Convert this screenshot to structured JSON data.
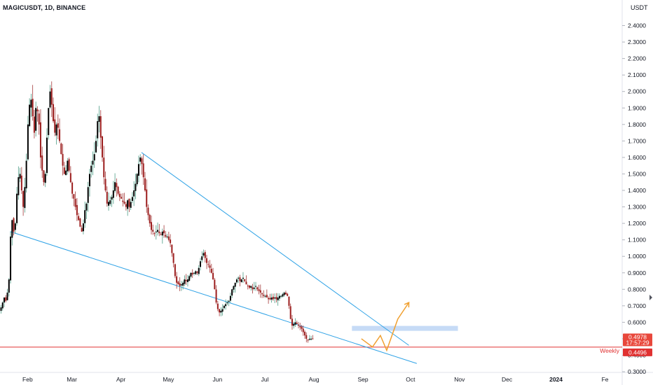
{
  "header": {
    "symbol_title": "MAGICUSDT, 1D, BINANCE",
    "currency": "USDT"
  },
  "colors": {
    "up": "#000000",
    "down": "#9c1e1e",
    "wick_up": "#4e9c86",
    "wick_down": "#a33a3a",
    "trendline": "#2ea2e6",
    "support_line": "#e03131",
    "zone": "#bcd5f5",
    "projection": "#f0a030"
  },
  "chart_data": {
    "type": "candlestick",
    "title": "MAGICUSDT, 1D, BINANCE",
    "y_axis_unit": "USDT",
    "y_ticks": [
      "2.4000",
      "2.3000",
      "2.2000",
      "2.1000",
      "2.0000",
      "1.9000",
      "1.8000",
      "1.7000",
      "1.6000",
      "1.5000",
      "1.4000",
      "1.3000",
      "1.2000",
      "1.1000",
      "1.0000",
      "0.9000",
      "0.8000",
      "0.7000",
      "0.6000",
      "0.5000",
      "0.4000",
      "0.3000"
    ],
    "x_ticks": [
      "Feb",
      "Mar",
      "Apr",
      "May",
      "Jun",
      "Jul",
      "Aug",
      "Sep",
      "Oct",
      "Nov",
      "Dec",
      "2024",
      "Fe"
    ],
    "x_start": "2023-01-15",
    "current_price": "0.4978",
    "countdown": "17:57:29",
    "weekly_level_label": "Weekly",
    "weekly_level_price": "0.4496",
    "support_zone": [
      0.548,
      0.578
    ],
    "wedge_upper": [
      [
        "2023-04-14",
        1.63
      ],
      [
        "2023-09-30",
        0.46
      ]
    ],
    "wedge_lower": [
      [
        "2023-01-21",
        1.15
      ],
      [
        "2023-10-05",
        0.35
      ]
    ],
    "projection_path": [
      [
        "2023-08-31",
        0.5
      ],
      [
        "2023-09-07",
        0.45
      ],
      [
        "2023-09-12",
        0.52
      ],
      [
        "2023-09-16",
        0.43
      ],
      [
        "2023-09-23",
        0.62
      ],
      [
        "2023-09-30",
        0.72
      ]
    ],
    "close_series": [
      0.69,
      0.72,
      0.75,
      0.73,
      0.78,
      0.86,
      1.12,
      1.22,
      1.15,
      1.2,
      1.38,
      1.48,
      1.5,
      1.4,
      1.3,
      1.42,
      1.58,
      1.8,
      1.92,
      1.95,
      1.85,
      1.75,
      1.9,
      1.88,
      1.8,
      1.6,
      1.52,
      1.45,
      1.5,
      1.72,
      1.9,
      2.0,
      1.92,
      1.82,
      1.75,
      1.8,
      1.78,
      1.7,
      1.62,
      1.55,
      1.5,
      1.52,
      1.58,
      1.52,
      1.45,
      1.38,
      1.35,
      1.3,
      1.25,
      1.22,
      1.18,
      1.15,
      1.2,
      1.28,
      1.32,
      1.42,
      1.5,
      1.55,
      1.58,
      1.62,
      1.7,
      1.82,
      1.85,
      1.72,
      1.6,
      1.48,
      1.4,
      1.32,
      1.33,
      1.34,
      1.36,
      1.4,
      1.45,
      1.42,
      1.38,
      1.36,
      1.35,
      1.33,
      1.32,
      1.3,
      1.34,
      1.3,
      1.33,
      1.36,
      1.4,
      1.44,
      1.5,
      1.56,
      1.6,
      1.56,
      1.48,
      1.4,
      1.3,
      1.25,
      1.2,
      1.16,
      1.15,
      1.14,
      1.15,
      1.16,
      1.14,
      1.13,
      1.15,
      1.14,
      1.12,
      1.12,
      1.1,
      1.08,
      1.02,
      0.96,
      0.88,
      0.84,
      0.83,
      0.82,
      0.83,
      0.84,
      0.86,
      0.85,
      0.86,
      0.88,
      0.9,
      0.89,
      0.9,
      0.91,
      0.9,
      0.93,
      0.97,
      1.0,
      1.02,
      0.99,
      0.96,
      0.95,
      0.93,
      0.9,
      0.86,
      0.8,
      0.72,
      0.68,
      0.66,
      0.67,
      0.68,
      0.7,
      0.71,
      0.72,
      0.73,
      0.76,
      0.8,
      0.82,
      0.84,
      0.86,
      0.87,
      0.85,
      0.86,
      0.87,
      0.85,
      0.83,
      0.82,
      0.81,
      0.82,
      0.8,
      0.81,
      0.82,
      0.8,
      0.79,
      0.78,
      0.77,
      0.76,
      0.76,
      0.75,
      0.74,
      0.74,
      0.75,
      0.74,
      0.75,
      0.74,
      0.75,
      0.76,
      0.76,
      0.77,
      0.78,
      0.77,
      0.76,
      0.7,
      0.62,
      0.58,
      0.59,
      0.6,
      0.59,
      0.58,
      0.57,
      0.56,
      0.54,
      0.52,
      0.5,
      0.49,
      0.5,
      0.5,
      0.4978
    ]
  }
}
